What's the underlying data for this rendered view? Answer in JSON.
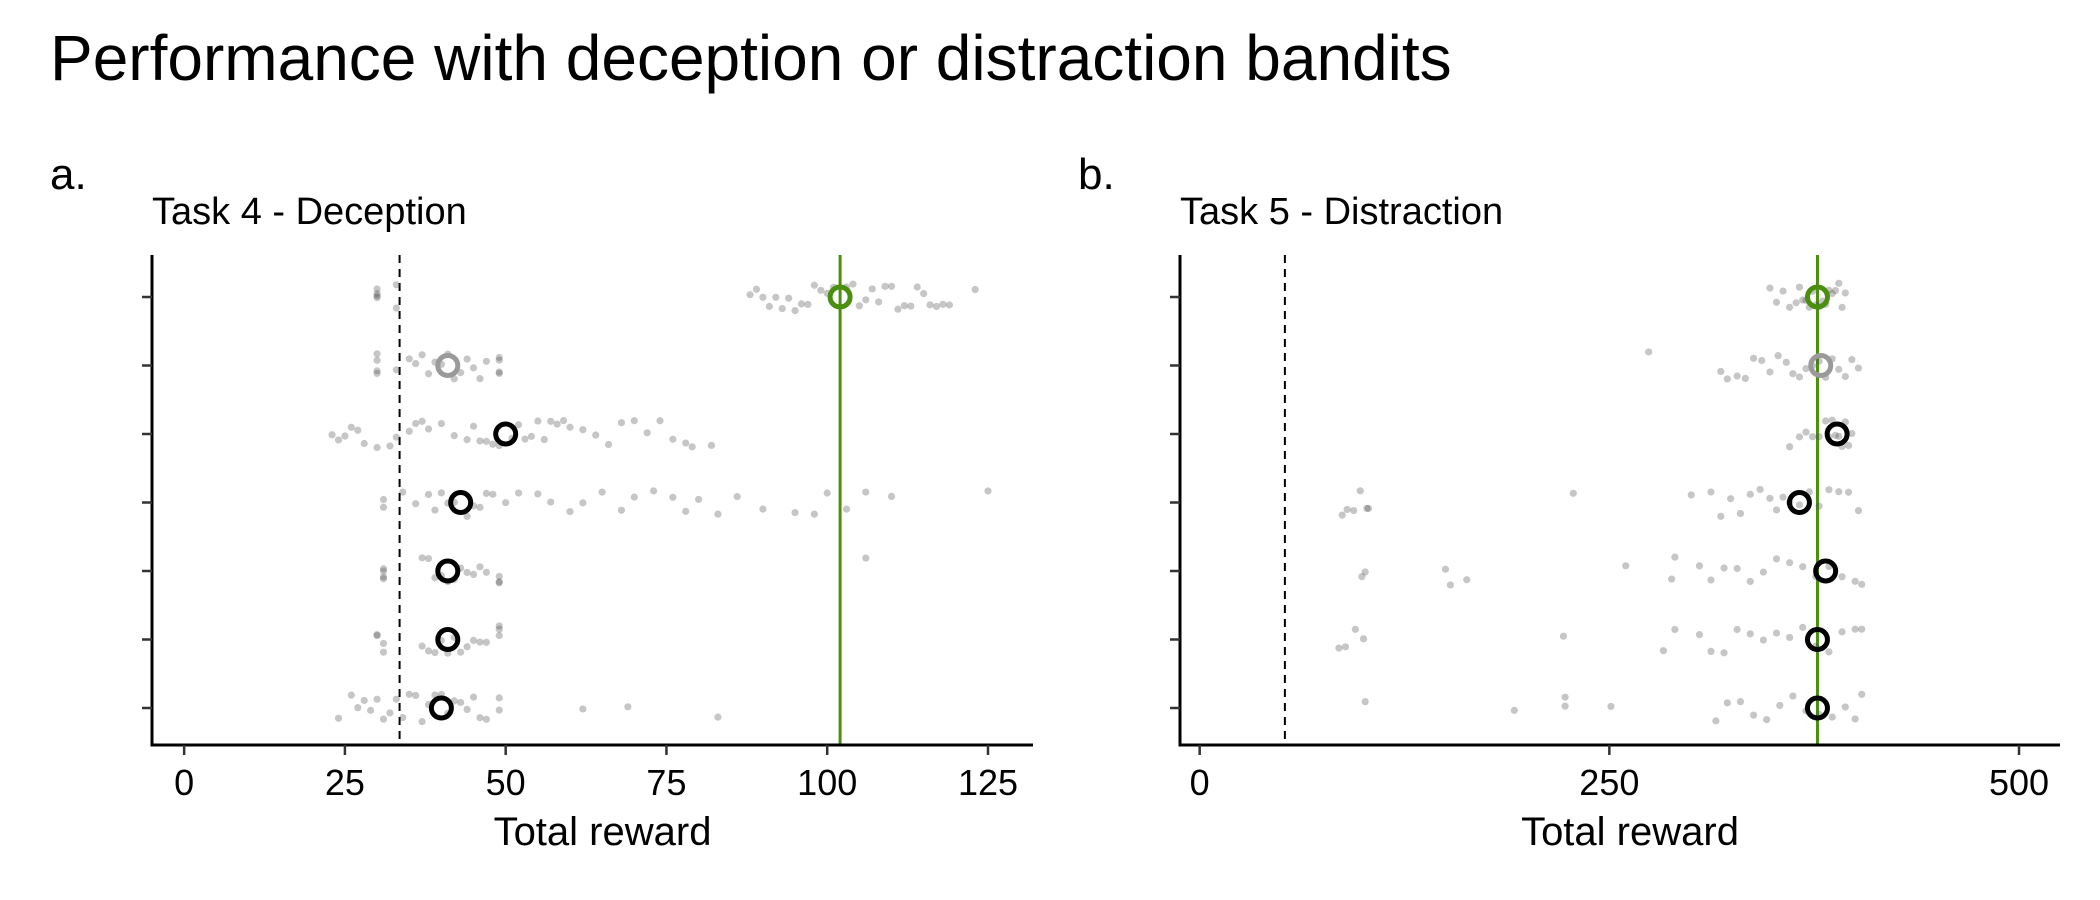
{
  "figure": {
    "title": "Performance with deception or distraction bandits"
  },
  "chart_data": [
    {
      "panel": "a.",
      "type": "scatter",
      "title": "Task 4 - Deception",
      "xlabel": "Total reward",
      "ylabel": "",
      "xlim": [
        -5,
        132
      ],
      "xticks": [
        0,
        25,
        50,
        75,
        100,
        125
      ],
      "xtick_labels": [
        "0",
        "25",
        "50",
        "75",
        "100",
        "125"
      ],
      "rows": 7,
      "grid": false,
      "reference_lines": [
        {
          "style": "dashed",
          "color": "#000000",
          "x": 33.5
        },
        {
          "style": "solid",
          "color": "#4a8f0f",
          "x": 102
        }
      ],
      "means": [
        {
          "row": 1,
          "x": 102,
          "color": "#4a8f0f"
        },
        {
          "row": 2,
          "x": 41,
          "color": "#9a9a9a"
        },
        {
          "row": 3,
          "x": 50,
          "color": "#000000"
        },
        {
          "row": 4,
          "x": 43,
          "color": "#000000"
        },
        {
          "row": 5,
          "x": 41,
          "color": "#000000"
        },
        {
          "row": 6,
          "x": 41,
          "color": "#000000"
        },
        {
          "row": 7,
          "x": 40,
          "color": "#000000"
        }
      ],
      "points": [
        {
          "row": 1,
          "x": [
            30,
            30,
            30,
            30,
            33,
            33,
            88,
            89,
            90,
            91,
            92,
            93,
            94,
            95,
            96,
            97,
            98,
            99,
            100,
            101,
            103,
            104,
            105,
            106,
            107,
            108,
            109,
            110,
            111,
            112,
            113,
            114,
            115,
            116,
            117,
            118,
            119,
            123
          ]
        },
        {
          "row": 2,
          "x": [
            30,
            30,
            30,
            30,
            33,
            35,
            36,
            37,
            38,
            39,
            40,
            41,
            42,
            43,
            44,
            45,
            46,
            47,
            49,
            49,
            49,
            49
          ]
        },
        {
          "row": 3,
          "x": [
            23,
            24,
            25,
            26,
            27,
            28,
            30,
            32,
            33,
            35,
            36,
            37,
            38,
            40,
            42,
            44,
            45,
            46,
            47,
            48,
            49,
            51,
            52,
            53,
            54,
            55,
            56,
            57,
            58,
            59,
            60,
            62,
            64,
            66,
            68,
            70,
            72,
            74,
            76,
            78,
            79,
            82
          ]
        },
        {
          "row": 4,
          "x": [
            31,
            31,
            34,
            36,
            38,
            39,
            40,
            41,
            42,
            44,
            45,
            46,
            47,
            48,
            50,
            52,
            55,
            57,
            60,
            62,
            65,
            68,
            70,
            73,
            76,
            78,
            80,
            83,
            86,
            90,
            95,
            98,
            100,
            103,
            106,
            110,
            125
          ]
        },
        {
          "row": 5,
          "x": [
            31,
            31,
            31,
            31,
            37,
            38,
            39,
            40,
            41,
            42,
            43,
            44,
            45,
            46,
            47,
            49,
            49,
            49,
            106
          ]
        },
        {
          "row": 6,
          "x": [
            30,
            30,
            31,
            31,
            37,
            38,
            39,
            40,
            41,
            42,
            43,
            44,
            45,
            46,
            47,
            49,
            49,
            49
          ]
        },
        {
          "row": 7,
          "x": [
            24,
            26,
            27,
            28,
            29,
            30,
            31,
            32,
            33,
            34,
            35,
            36,
            37,
            38,
            39,
            40,
            41,
            42,
            43,
            44,
            45,
            46,
            47,
            49,
            49,
            62,
            69,
            83
          ]
        }
      ]
    },
    {
      "panel": "b.",
      "type": "scatter",
      "title": "Task 5 - Distraction",
      "xlabel": "Total reward",
      "ylabel": "",
      "xlim": [
        -12,
        525
      ],
      "xticks": [
        0,
        250,
        500
      ],
      "xtick_labels": [
        "0",
        "250",
        "500"
      ],
      "rows": 7,
      "grid": false,
      "reference_lines": [
        {
          "style": "dashed",
          "color": "#000000",
          "x": 52
        },
        {
          "style": "solid",
          "color": "#4a8f0f",
          "x": 377
        }
      ],
      "means": [
        {
          "row": 1,
          "x": 377,
          "color": "#4a8f0f"
        },
        {
          "row": 2,
          "x": 379,
          "color": "#9a9a9a"
        },
        {
          "row": 3,
          "x": 389,
          "color": "#000000"
        },
        {
          "row": 4,
          "x": 366,
          "color": "#000000"
        },
        {
          "row": 5,
          "x": 382,
          "color": "#000000"
        },
        {
          "row": 6,
          "x": 377,
          "color": "#000000"
        },
        {
          "row": 7,
          "x": 377,
          "color": "#000000"
        }
      ],
      "points": [
        {
          "row": 1,
          "x": [
            348,
            352,
            356,
            360,
            364,
            366,
            368,
            370,
            372,
            374,
            376,
            378,
            380,
            382,
            384,
            386,
            388,
            390,
            392,
            394
          ]
        },
        {
          "row": 2,
          "x": [
            274,
            318,
            322,
            328,
            333,
            338,
            343,
            348,
            353,
            358,
            362,
            366,
            370,
            374,
            378,
            382,
            386,
            390,
            394,
            398,
            402
          ]
        },
        {
          "row": 3,
          "x": [
            360,
            366,
            370,
            374,
            378,
            382,
            384,
            386,
            388,
            390,
            392,
            394,
            396,
            398
          ]
        },
        {
          "row": 4,
          "x": [
            87,
            90,
            94,
            98,
            102,
            103,
            228,
            300,
            312,
            318,
            324,
            330,
            336,
            342,
            348,
            352,
            356,
            360,
            366,
            372,
            378,
            384,
            390,
            396,
            402
          ]
        },
        {
          "row": 5,
          "x": [
            99,
            101,
            150,
            153,
            163,
            260,
            288,
            290,
            305,
            312,
            320,
            328,
            336,
            344,
            352,
            360,
            368,
            376,
            384,
            392,
            400,
            404
          ]
        },
        {
          "row": 6,
          "x": [
            85,
            89,
            95,
            100,
            222,
            283,
            290,
            305,
            312,
            320,
            328,
            336,
            344,
            352,
            360,
            368,
            376,
            384,
            392,
            400,
            404
          ]
        },
        {
          "row": 7,
          "x": [
            101,
            192,
            223,
            223,
            251,
            315,
            322,
            330,
            338,
            346,
            354,
            362,
            370,
            378,
            386,
            394,
            400,
            404
          ]
        }
      ]
    }
  ]
}
